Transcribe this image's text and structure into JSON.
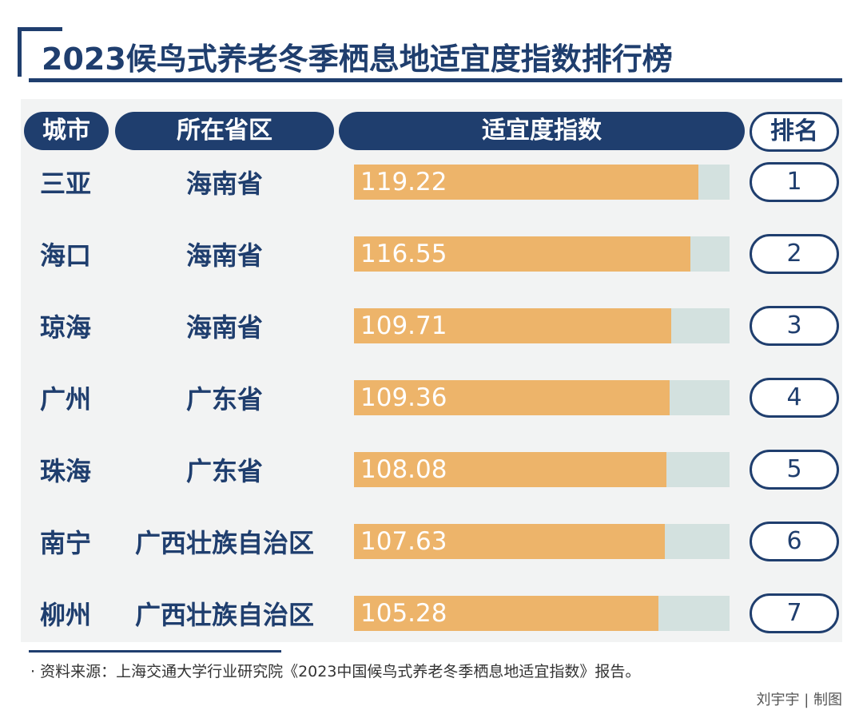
{
  "chart_data": {
    "type": "bar",
    "title": "2023候鸟式养老冬季栖息地适宜度指数排行榜",
    "columns": [
      "城市",
      "所在省区",
      "适宜度指数",
      "排名"
    ],
    "categories": [
      "三亚",
      "海口",
      "琼海",
      "广州",
      "珠海",
      "南宁",
      "柳州"
    ],
    "provinces": [
      "海南省",
      "海南省",
      "海南省",
      "广东省",
      "广东省",
      "广西壮族自治区",
      "广西壮族自治区"
    ],
    "values": [
      119.22,
      116.55,
      109.71,
      109.36,
      108.08,
      107.63,
      105.28
    ],
    "value_labels": [
      "119.22",
      "116.55",
      "109.71",
      "109.36",
      "108.08",
      "107.63",
      "105.28"
    ],
    "ranks": [
      "1",
      "2",
      "3",
      "4",
      "5",
      "6",
      "7"
    ],
    "xlim": [
      0,
      130
    ],
    "orientation": "horizontal",
    "grid": false,
    "colors": {
      "bar": "#edb46a",
      "track": "#d3e1df",
      "header": "#1f3e6e",
      "text": "#1f3e6e"
    }
  },
  "footer": {
    "source": "· 资料来源：上海交通大学行业研究院《2023中国候鸟式养老冬季栖息地适宜指数》报告。",
    "credit": "刘宇宇 | 制图"
  }
}
